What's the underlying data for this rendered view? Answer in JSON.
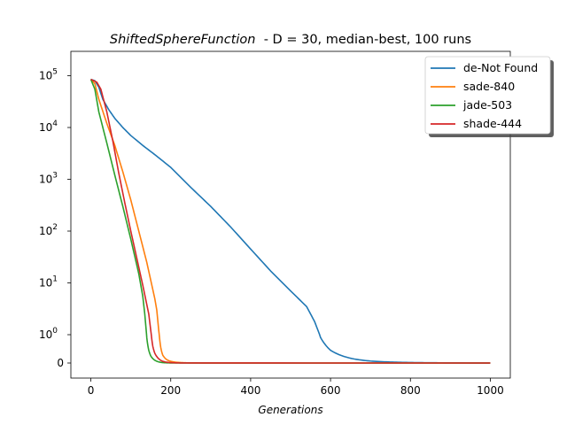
{
  "chart_data": {
    "type": "line",
    "title_italic": "ShiftedSphereFunction",
    "title_rest": "  - D = 30, median-best, 100 runs",
    "xlabel": "Generations",
    "ylabel": "",
    "xlim": [
      -50,
      1050
    ],
    "x_ticks": [
      0,
      200,
      400,
      600,
      800,
      1000
    ],
    "y_scale": "symlog",
    "y_ticks": [
      {
        "value": 0,
        "base": "0",
        "exp": ""
      },
      {
        "value": 1,
        "base": "10",
        "exp": "0"
      },
      {
        "value": 10,
        "base": "10",
        "exp": "1"
      },
      {
        "value": 100,
        "base": "10",
        "exp": "2"
      },
      {
        "value": 1000,
        "base": "10",
        "exp": "3"
      },
      {
        "value": 10000,
        "base": "10",
        "exp": "4"
      },
      {
        "value": 100000,
        "base": "10",
        "exp": "5"
      }
    ],
    "legend_position": "upper-right",
    "series": [
      {
        "name": "de-Not Found",
        "color": "#1f77b4",
        "points": [
          [
            0,
            85000
          ],
          [
            10,
            80000
          ],
          [
            20,
            60000
          ],
          [
            30,
            35000
          ],
          [
            45,
            22000
          ],
          [
            60,
            15000
          ],
          [
            80,
            10000
          ],
          [
            100,
            7000
          ],
          [
            130,
            4500
          ],
          [
            160,
            3000
          ],
          [
            200,
            1700
          ],
          [
            250,
            700
          ],
          [
            300,
            300
          ],
          [
            350,
            120
          ],
          [
            400,
            45
          ],
          [
            450,
            17
          ],
          [
            500,
            7
          ],
          [
            540,
            3.5
          ],
          [
            560,
            1.8
          ],
          [
            575,
            0.9
          ],
          [
            600,
            0.45
          ],
          [
            630,
            0.25
          ],
          [
            660,
            0.14
          ],
          [
            700,
            0.07
          ],
          [
            750,
            0.035
          ],
          [
            800,
            0.018
          ],
          [
            850,
            0.01
          ],
          [
            900,
            0.006
          ],
          [
            1000,
            0.002
          ]
        ]
      },
      {
        "name": "sade-840",
        "color": "#ff7f0e",
        "points": [
          [
            0,
            85000
          ],
          [
            10,
            70000
          ],
          [
            20,
            35000
          ],
          [
            40,
            12000
          ],
          [
            60,
            4500
          ],
          [
            80,
            1400
          ],
          [
            100,
            400
          ],
          [
            120,
            100
          ],
          [
            140,
            25
          ],
          [
            160,
            5
          ],
          [
            165,
            3
          ],
          [
            170,
            1.2
          ],
          [
            175,
            0.55
          ],
          [
            180,
            0.28
          ],
          [
            190,
            0.12
          ],
          [
            200,
            0.06
          ],
          [
            220,
            0.02
          ],
          [
            240,
            0.008
          ],
          [
            300,
            0.002
          ],
          [
            400,
            0.0005
          ],
          [
            1000,
            0.0001
          ]
        ]
      },
      {
        "name": "jade-503",
        "color": "#2ca02c",
        "points": [
          [
            0,
            85000
          ],
          [
            10,
            55000
          ],
          [
            20,
            20000
          ],
          [
            40,
            5000
          ],
          [
            60,
            1200
          ],
          [
            80,
            300
          ],
          [
            100,
            70
          ],
          [
            120,
            15
          ],
          [
            130,
            5.5
          ],
          [
            135,
            2.5
          ],
          [
            140,
            0.9
          ],
          [
            145,
            0.45
          ],
          [
            150,
            0.25
          ],
          [
            160,
            0.1
          ],
          [
            170,
            0.04
          ],
          [
            180,
            0.015
          ],
          [
            200,
            0.003
          ],
          [
            250,
            0.0005
          ],
          [
            1000,
            0.0001
          ]
        ]
      },
      {
        "name": "shade-444",
        "color": "#d62728",
        "points": [
          [
            0,
            85000
          ],
          [
            15,
            75000
          ],
          [
            25,
            55000
          ],
          [
            40,
            20000
          ],
          [
            55,
            5500
          ],
          [
            70,
            1300
          ],
          [
            85,
            350
          ],
          [
            100,
            100
          ],
          [
            115,
            30
          ],
          [
            130,
            9
          ],
          [
            145,
            2.5
          ],
          [
            150,
            1.2
          ],
          [
            155,
            0.6
          ],
          [
            160,
            0.35
          ],
          [
            170,
            0.15
          ],
          [
            180,
            0.06
          ],
          [
            200,
            0.015
          ],
          [
            220,
            0.004
          ],
          [
            250,
            0.001
          ],
          [
            1000,
            0.0001
          ]
        ]
      }
    ]
  }
}
